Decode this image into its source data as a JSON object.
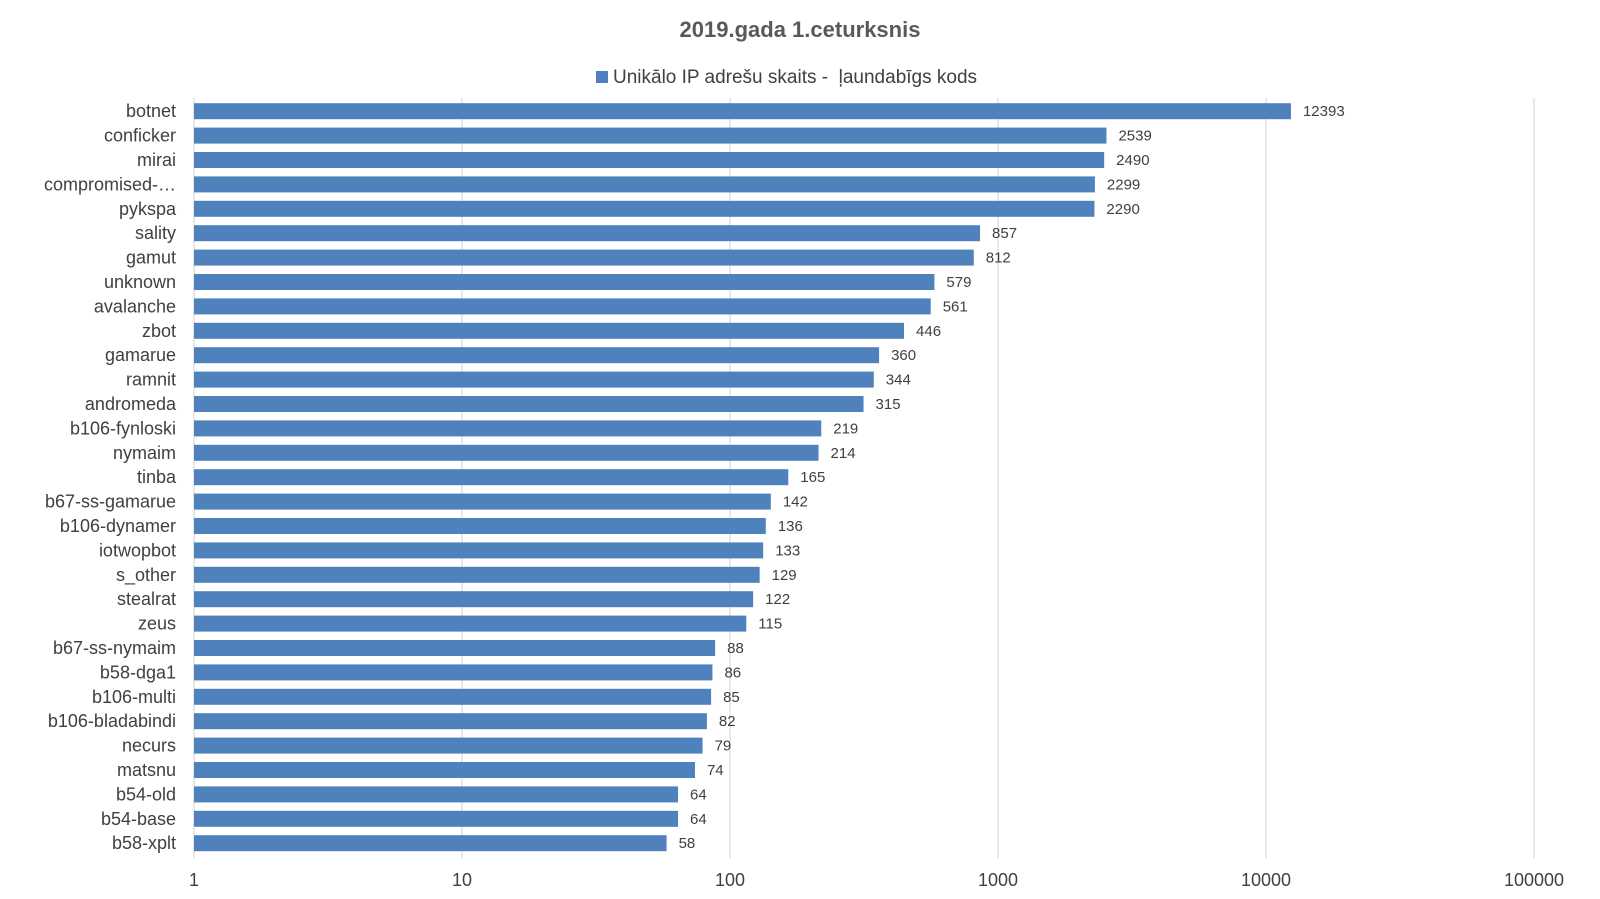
{
  "chart_data": {
    "type": "bar",
    "orientation": "horizontal",
    "title": "2019.gada 1.ceturksnis",
    "xscale": "log",
    "xlim": [
      1,
      100000
    ],
    "xticks": [
      "1",
      "10",
      "100",
      "1000",
      "10000",
      "100000"
    ],
    "grid": true,
    "legend_position": "top",
    "bar_color": "#4f81bd",
    "categories": [
      "botnet",
      "conficker",
      "mirai",
      "compromised-…",
      "pykspa",
      "sality",
      "gamut",
      "unknown",
      "avalanche",
      "zbot",
      "gamarue",
      "ramnit",
      "andromeda",
      "b106-fynloski",
      "nymaim",
      "tinba",
      "b67-ss-gamarue",
      "b106-dynamer",
      "iotwopbot",
      "s_other",
      "stealrat",
      "zeus",
      "b67-ss-nymaim",
      "b58-dga1",
      "b106-multi",
      "b106-bladabindi",
      "necurs",
      "matsnu",
      "b54-old",
      "b54-base",
      "b58-xplt"
    ],
    "series": [
      {
        "name": "Unikālo IP adrešu skaits -  ļaundabīgs kods",
        "values": [
          12393,
          2539,
          2490,
          2299,
          2290,
          857,
          812,
          579,
          561,
          446,
          360,
          344,
          315,
          219,
          214,
          165,
          142,
          136,
          133,
          129,
          122,
          115,
          88,
          86,
          85,
          82,
          79,
          74,
          64,
          64,
          58
        ]
      }
    ]
  }
}
